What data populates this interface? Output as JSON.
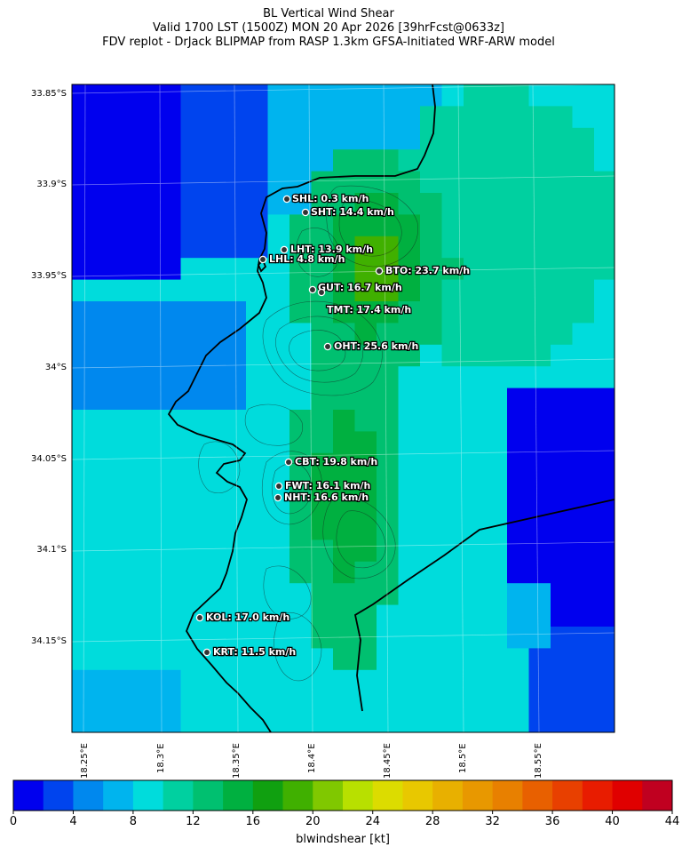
{
  "title": {
    "line1": "BL Vertical Wind Shear",
    "line2": "Valid 1700 LST (1500Z) MON 20 Apr 2026 [39hrFcst@0633z]",
    "line3": "FDV replot - DrJack BLIPMAP from RASP 1.3km GFSA-Initiated WRF-ARW model"
  },
  "axes": {
    "lat_labels": [
      "33.85°S",
      "33.9°S",
      "33.95°S",
      "34°S",
      "34.05°S",
      "34.1°S",
      "34.15°S"
    ],
    "lon_labels": [
      "18.25°E",
      "18.3°E",
      "18.35°E",
      "18.4°E",
      "18.45°E",
      "18.5°E",
      "18.55°E"
    ]
  },
  "stations": [
    {
      "label": "SHL: 0.3 km/h"
    },
    {
      "label": "SHT: 14.4 km/h"
    },
    {
      "label": "LHT: 13.9 km/h"
    },
    {
      "label": "LHL: 4.8 km/h"
    },
    {
      "label": "BTO: 23.7 km/h"
    },
    {
      "label": "GUT: 16.7 km/h"
    },
    {
      "label": "TMT: 17.4 km/h"
    },
    {
      "label": "OHT: 25.6 km/h"
    },
    {
      "label": "CBT: 19.8 km/h"
    },
    {
      "label": "FWT: 16.1 km/h"
    },
    {
      "label": "NHT: 16.6 km/h"
    },
    {
      "label": "KOL: 17.0 km/h"
    },
    {
      "label": "KRT: 11.5 km/h"
    }
  ],
  "colorbar": {
    "title": "blwindshear [kt]",
    "tick_labels": [
      "0",
      "4",
      "8",
      "12",
      "16",
      "20",
      "24",
      "28",
      "32",
      "36",
      "40",
      "44"
    ],
    "colors": [
      "#0000ee",
      "#0044ee",
      "#0088ee",
      "#00b4ee",
      "#00dcdc",
      "#00d0a0",
      "#00c070",
      "#00b040",
      "#10a010",
      "#40b000",
      "#80c800",
      "#b8e000",
      "#dcdc00",
      "#e8c800",
      "#e8b000",
      "#e89800",
      "#e88000",
      "#e86000",
      "#e84000",
      "#e81c00",
      "#e00000",
      "#c00020"
    ]
  }
}
